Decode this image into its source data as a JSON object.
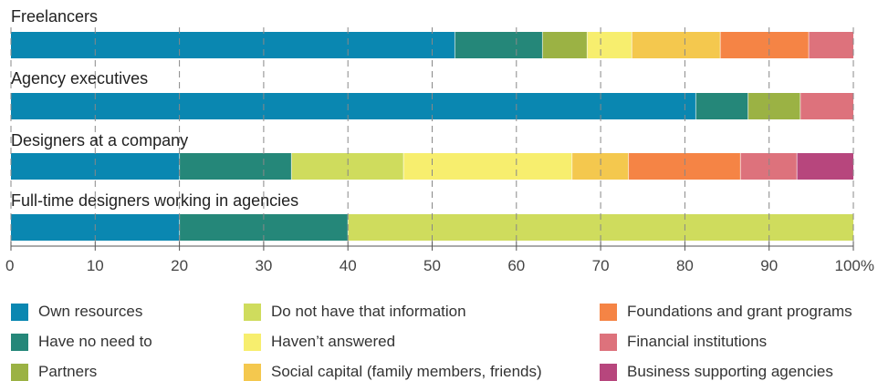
{
  "chart_data": {
    "type": "bar",
    "orientation": "horizontal",
    "stacked": true,
    "title": "",
    "xlabel": "",
    "ylabel": "",
    "xlim": [
      0,
      100
    ],
    "x_ticks": [
      "0",
      "10",
      "20",
      "30",
      "40",
      "50",
      "60",
      "70",
      "80",
      "90",
      "100%"
    ],
    "grid": "vertical dashed",
    "legend_position": "bottom",
    "categories": [
      "Freelancers",
      "Agency executives",
      "Designers at a company",
      "Full-time designers working in agencies"
    ],
    "series": [
      {
        "name": "Own resources",
        "color": "#0a87b1",
        "values": [
          52.7,
          81.3,
          20,
          20
        ]
      },
      {
        "name": "Have no need to",
        "color": "#258779",
        "values": [
          10.4,
          6.2,
          13.3,
          20
        ]
      },
      {
        "name": "Partners",
        "color": "#9bb244",
        "values": [
          5.3,
          6.2,
          0,
          0
        ]
      },
      {
        "name": "Do not have that information",
        "color": "#cfdc5d",
        "values": [
          0,
          0,
          13.3,
          60
        ]
      },
      {
        "name": "Haven’t answered",
        "color": "#f7ee6e",
        "values": [
          5.3,
          0,
          20,
          0
        ]
      },
      {
        "name": "Social capital (family members, friends)",
        "color": "#f4c84e",
        "values": [
          10.5,
          0,
          6.7,
          0
        ]
      },
      {
        "name": "Foundations and grant programs",
        "color": "#f58445",
        "values": [
          10.5,
          0,
          13.3,
          0
        ]
      },
      {
        "name": "Financial institutions",
        "color": "#dd727c",
        "values": [
          5.3,
          6.3,
          6.7,
          0
        ]
      },
      {
        "name": "Business supporting agencies",
        "color": "#b7467d",
        "values": [
          0,
          0,
          6.7,
          0
        ]
      }
    ]
  }
}
